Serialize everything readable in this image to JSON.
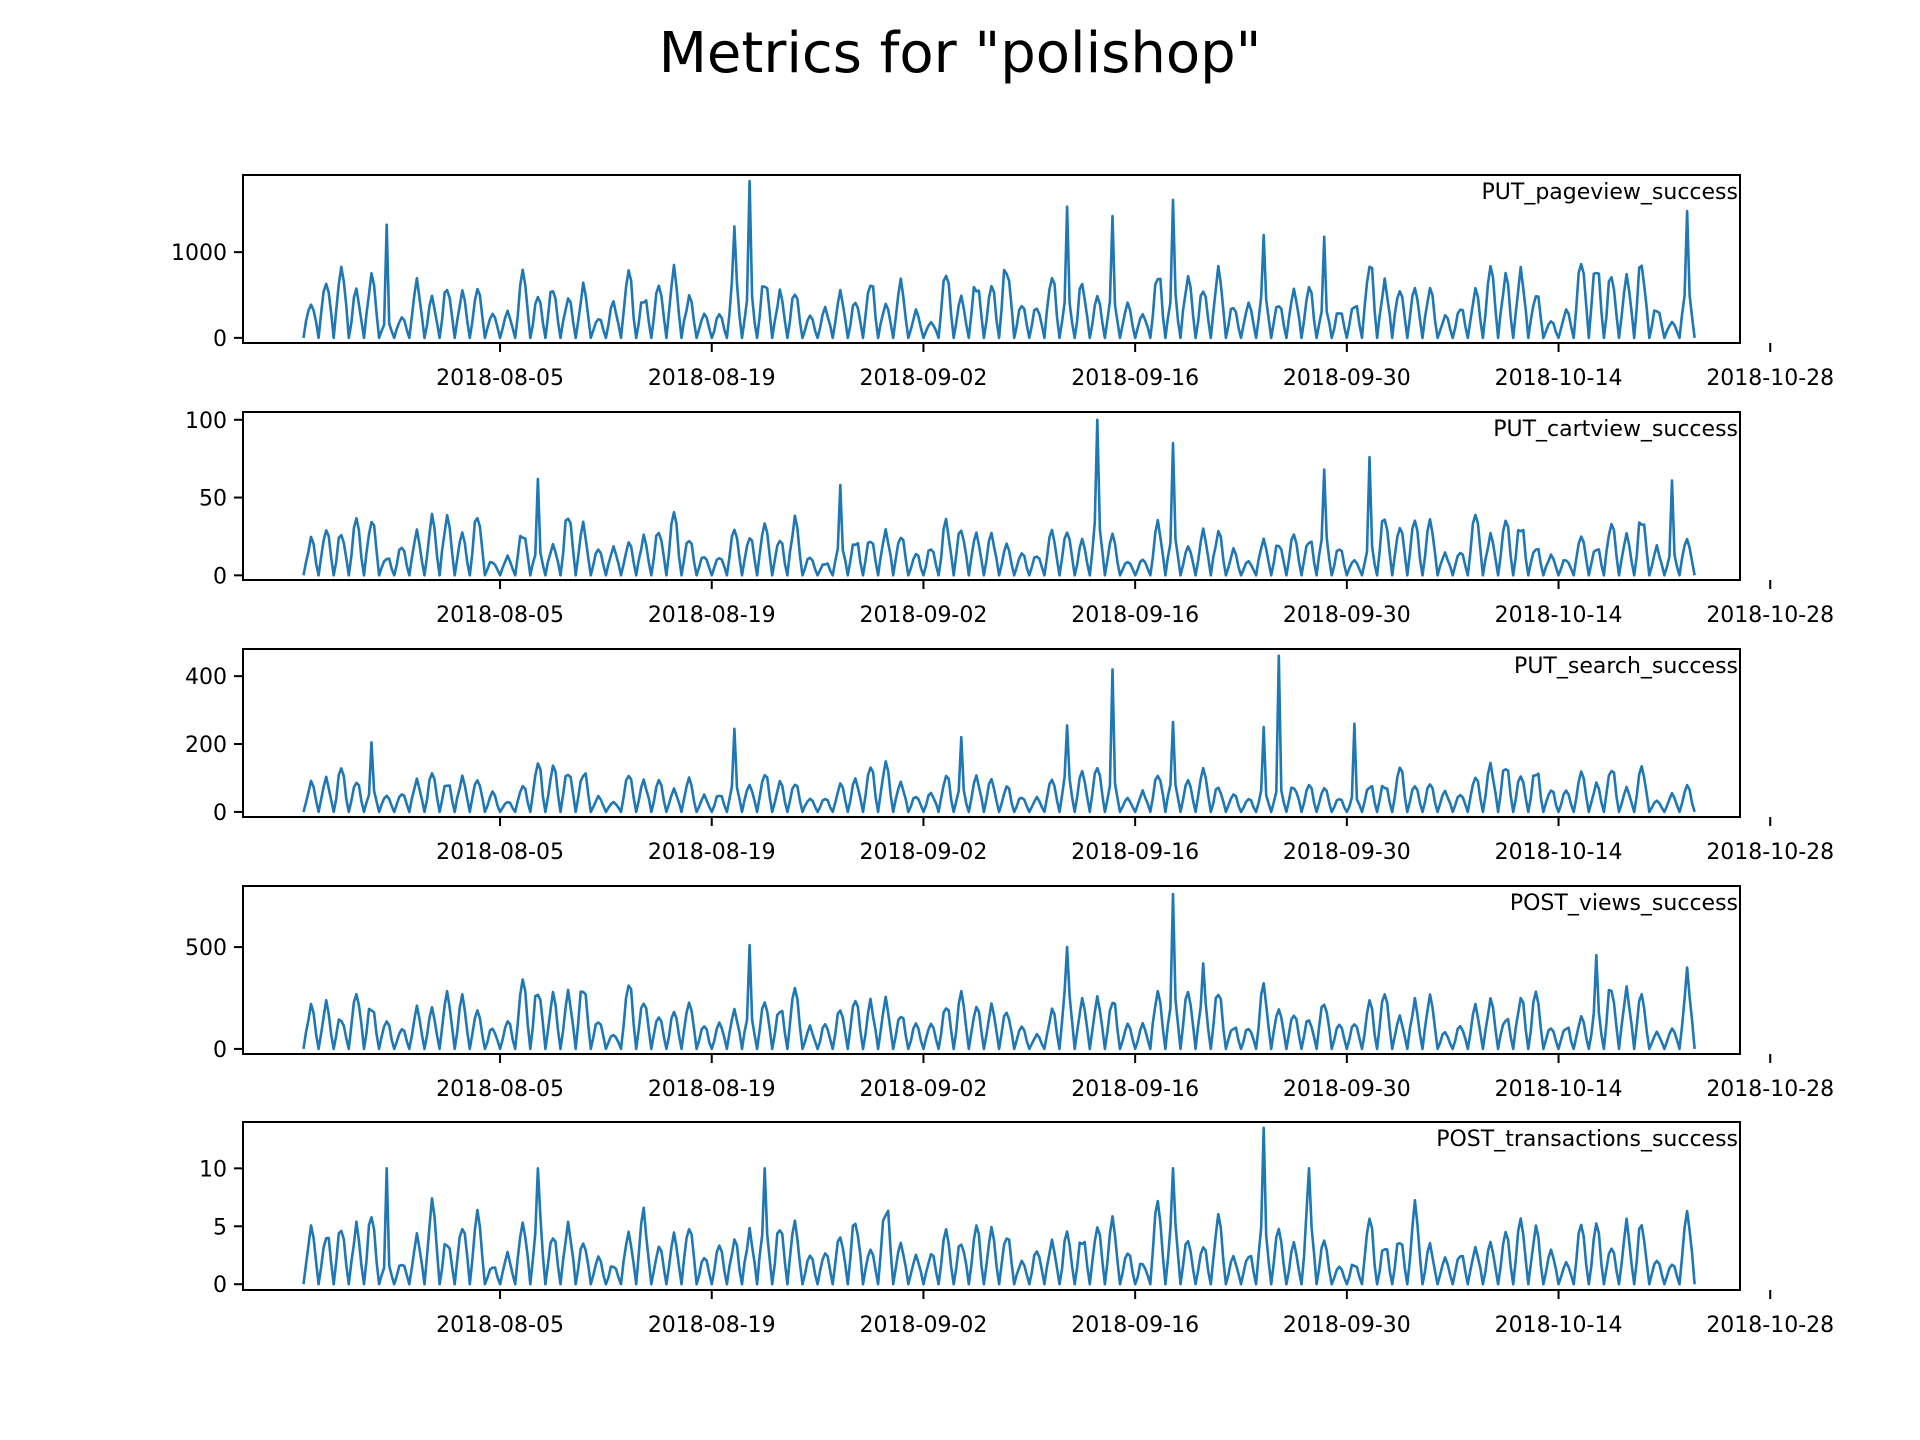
{
  "figure": {
    "title": "Metrics for \"polishop\"",
    "line_color": "#1f77b4"
  },
  "chart_data": [
    {
      "type": "line",
      "series_name": "PUT_pageview_success",
      "x_range": [
        "2018-07-23",
        "2018-10-23"
      ],
      "xlim": [
        "2018-07-19",
        "2018-10-26"
      ],
      "ylim": [
        -60,
        1900
      ],
      "x_ticks": [
        "2018-08-05",
        "2018-08-19",
        "2018-09-02",
        "2018-09-16",
        "2018-09-30",
        "2018-10-14",
        "2018-10-28"
      ],
      "y_ticks": [
        0,
        1000
      ],
      "base_max": 900,
      "peaks": [
        [
          "2018-07-28",
          1320
        ],
        [
          "2018-08-20",
          1300
        ],
        [
          "2018-08-21",
          1830
        ],
        [
          "2018-09-11",
          1530
        ],
        [
          "2018-09-14",
          1420
        ],
        [
          "2018-09-18",
          1610
        ],
        [
          "2018-09-24",
          1200
        ],
        [
          "2018-09-28",
          1180
        ],
        [
          "2018-10-22",
          1480
        ]
      ]
    },
    {
      "type": "line",
      "series_name": "PUT_cartview_success",
      "x_range": [
        "2018-07-23",
        "2018-10-23"
      ],
      "xlim": [
        "2018-07-19",
        "2018-10-26"
      ],
      "ylim": [
        -3,
        105
      ],
      "x_ticks": [
        "2018-08-05",
        "2018-08-19",
        "2018-09-02",
        "2018-09-16",
        "2018-09-30",
        "2018-10-14",
        "2018-10-28"
      ],
      "y_ticks": [
        0,
        50,
        100
      ],
      "base_max": 40,
      "peaks": [
        [
          "2018-08-07",
          62
        ],
        [
          "2018-08-27",
          58
        ],
        [
          "2018-09-13",
          100
        ],
        [
          "2018-09-18",
          85
        ],
        [
          "2018-09-28",
          68
        ],
        [
          "2018-10-01",
          76
        ],
        [
          "2018-10-21",
          61
        ]
      ]
    },
    {
      "type": "line",
      "series_name": "PUT_search_success",
      "x_range": [
        "2018-07-23",
        "2018-10-23"
      ],
      "xlim": [
        "2018-07-19",
        "2018-10-26"
      ],
      "ylim": [
        -15,
        480
      ],
      "x_ticks": [
        "2018-08-05",
        "2018-08-19",
        "2018-09-02",
        "2018-09-16",
        "2018-09-30",
        "2018-10-14",
        "2018-10-28"
      ],
      "y_ticks": [
        0,
        200,
        400
      ],
      "base_max": 140,
      "peaks": [
        [
          "2018-07-27",
          205
        ],
        [
          "2018-08-20",
          245
        ],
        [
          "2018-09-04",
          220
        ],
        [
          "2018-09-11",
          255
        ],
        [
          "2018-09-14",
          420
        ],
        [
          "2018-09-18",
          265
        ],
        [
          "2018-09-24",
          250
        ],
        [
          "2018-09-25",
          460
        ],
        [
          "2018-09-30",
          260
        ]
      ]
    },
    {
      "type": "line",
      "series_name": "POST_views_success",
      "x_range": [
        "2018-07-23",
        "2018-10-23"
      ],
      "xlim": [
        "2018-07-19",
        "2018-10-26"
      ],
      "ylim": [
        -25,
        800
      ],
      "x_ticks": [
        "2018-08-05",
        "2018-08-19",
        "2018-09-02",
        "2018-09-16",
        "2018-09-30",
        "2018-10-14",
        "2018-10-28"
      ],
      "y_ticks": [
        0,
        500
      ],
      "base_max": 320,
      "peaks": [
        [
          "2018-08-21",
          510
        ],
        [
          "2018-09-11",
          500
        ],
        [
          "2018-09-18",
          760
        ],
        [
          "2018-10-16",
          460
        ],
        [
          "2018-09-20",
          420
        ],
        [
          "2018-10-22",
          400
        ]
      ]
    },
    {
      "type": "line",
      "series_name": "POST_transactions_success",
      "x_range": [
        "2018-07-23",
        "2018-10-23"
      ],
      "xlim": [
        "2018-07-19",
        "2018-10-26"
      ],
      "ylim": [
        -0.5,
        14
      ],
      "x_ticks": [
        "2018-08-05",
        "2018-08-19",
        "2018-09-02",
        "2018-09-16",
        "2018-09-30",
        "2018-10-14",
        "2018-10-28"
      ],
      "y_ticks": [
        0,
        5,
        10
      ],
      "base_max": 7,
      "peaks": [
        [
          "2018-07-28",
          10
        ],
        [
          "2018-08-07",
          10
        ],
        [
          "2018-08-22",
          10
        ],
        [
          "2018-09-18",
          10
        ],
        [
          "2018-09-24",
          13.5
        ],
        [
          "2018-09-27",
          10
        ]
      ]
    }
  ]
}
